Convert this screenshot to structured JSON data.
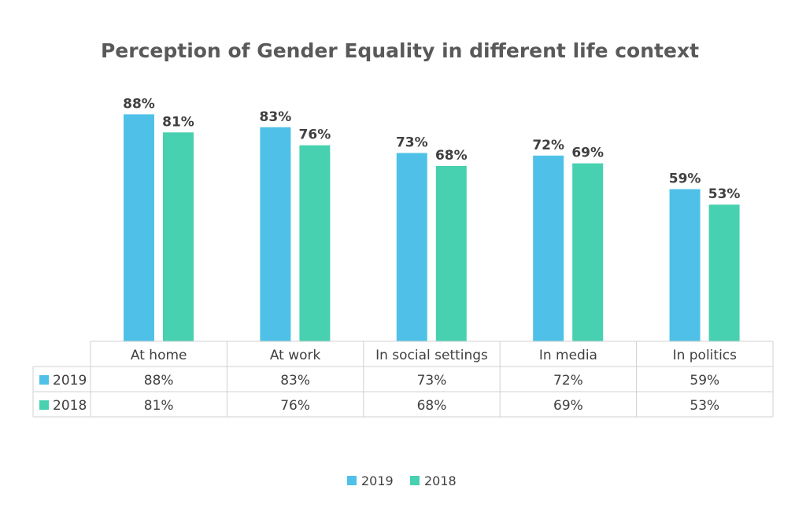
{
  "chart_data": {
    "type": "bar",
    "title": "Perception of Gender Equality in different life context",
    "categories": [
      "At home",
      "At work",
      "In social settings",
      "In media",
      "In politics"
    ],
    "series": [
      {
        "name": "2019",
        "values": [
          88,
          83,
          73,
          72,
          59
        ],
        "labels": [
          "88%",
          "83%",
          "73%",
          "72%",
          "59%"
        ],
        "color": "#4fc1e9"
      },
      {
        "name": "2018",
        "values": [
          81,
          76,
          68,
          69,
          53
        ],
        "labels": [
          "81%",
          "76%",
          "68%",
          "69%",
          "53%"
        ],
        "color": "#48d1b0"
      }
    ],
    "ylim": [
      0,
      100
    ],
    "grid": false,
    "legend": "bottom",
    "data_table": true
  }
}
